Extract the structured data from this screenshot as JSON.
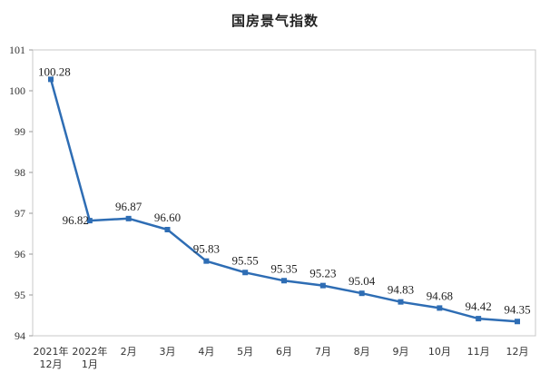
{
  "chart_data": {
    "type": "line",
    "title": "国房景气指数",
    "categories": [
      [
        "2021年",
        "12月"
      ],
      [
        "2022年",
        "1月"
      ],
      [
        "2月"
      ],
      [
        "3月"
      ],
      [
        "4月"
      ],
      [
        "5月"
      ],
      [
        "6月"
      ],
      [
        "7月"
      ],
      [
        "8月"
      ],
      [
        "9月"
      ],
      [
        "10月"
      ],
      [
        "11月"
      ],
      [
        "12月"
      ]
    ],
    "values": [
      100.28,
      96.82,
      96.87,
      96.6,
      95.83,
      95.55,
      95.35,
      95.23,
      95.04,
      94.83,
      94.68,
      94.42,
      94.35
    ],
    "data_labels": [
      "100.28",
      "96.82",
      "96.87",
      "96.60",
      "95.83",
      "95.55",
      "95.35",
      "95.23",
      "95.04",
      "94.83",
      "94.68",
      "94.42",
      "94.35"
    ],
    "ylim": [
      94,
      101
    ],
    "yticks": [
      94,
      95,
      96,
      97,
      98,
      99,
      100,
      101
    ],
    "grid": false,
    "line_color": "#2E6DB4"
  }
}
